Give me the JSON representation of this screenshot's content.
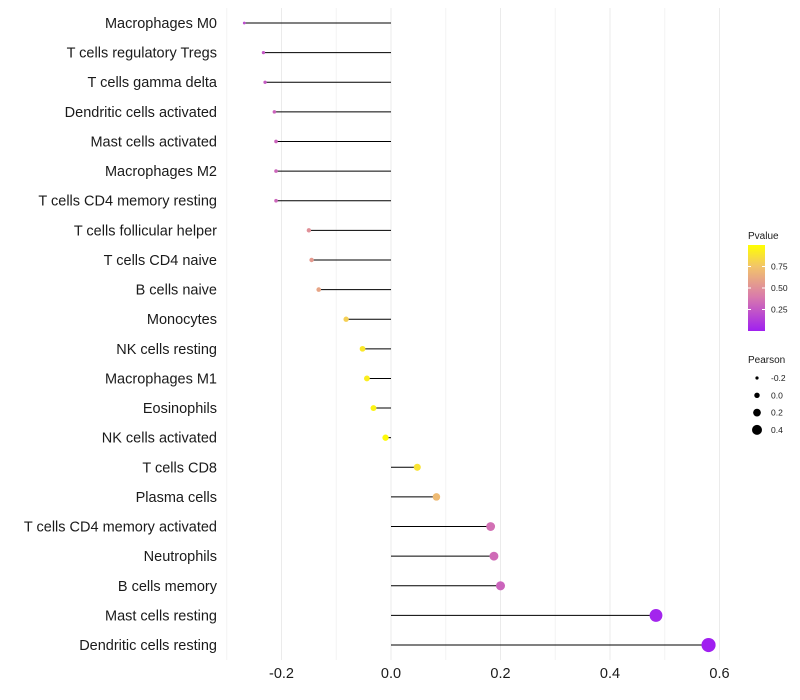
{
  "chart_data": {
    "type": "lollipop",
    "title": "",
    "xlabel": "",
    "ylabel": "",
    "xlim": [
      -0.3,
      0.6
    ],
    "x_ticks": [
      -0.2,
      0.0,
      0.2,
      0.4,
      0.6
    ],
    "x_tick_labels": [
      "-0.2",
      "0.0",
      "0.2",
      "0.4",
      "0.6"
    ],
    "grid": true,
    "colors": {
      "low": "#a020f0",
      "mid": "#d97bab",
      "high": "#ffff00",
      "stem": "#000000",
      "grid": "#ebebeb"
    },
    "categories": [
      "Macrophages M0",
      "T cells regulatory  Tregs",
      "T cells gamma delta",
      "Dendritic cells activated",
      "Mast cells activated",
      "Macrophages M2",
      "T cells CD4 memory resting",
      "T cells follicular helper",
      "T cells CD4 naive",
      "B cells naive",
      "Monocytes",
      "NK cells resting",
      "Macrophages M1",
      "Eosinophils",
      "NK cells activated",
      "T cells CD8",
      "Plasma cells",
      "T cells CD4 memory activated",
      "Neutrophils",
      "B cells memory",
      "Mast cells resting",
      "Dendritic cells resting"
    ],
    "pearson": [
      -0.268,
      -0.233,
      -0.23,
      -0.213,
      -0.21,
      -0.21,
      -0.21,
      -0.15,
      -0.145,
      -0.132,
      -0.082,
      -0.052,
      -0.044,
      -0.032,
      -0.01,
      0.048,
      0.083,
      0.182,
      0.188,
      0.2,
      0.484,
      0.58
    ],
    "pvalue": [
      0.2,
      0.25,
      0.26,
      0.3,
      0.3,
      0.31,
      0.31,
      0.5,
      0.55,
      0.6,
      0.8,
      0.9,
      0.93,
      0.95,
      0.98,
      0.88,
      0.7,
      0.35,
      0.33,
      0.3,
      0.02,
      0.0
    ],
    "legend": {
      "pvalue": {
        "title": "Pvalue",
        "ticks": [
          0.75,
          0.5,
          0.25
        ],
        "tick_labels": [
          "0.75",
          "0.50",
          "0.25"
        ]
      },
      "pearson": {
        "title": "Pearson",
        "values": [
          -0.2,
          0.0,
          0.2,
          0.4
        ],
        "labels": [
          "-0.2",
          "0.0",
          "0.2",
          "0.4"
        ]
      },
      "position": "right"
    }
  }
}
